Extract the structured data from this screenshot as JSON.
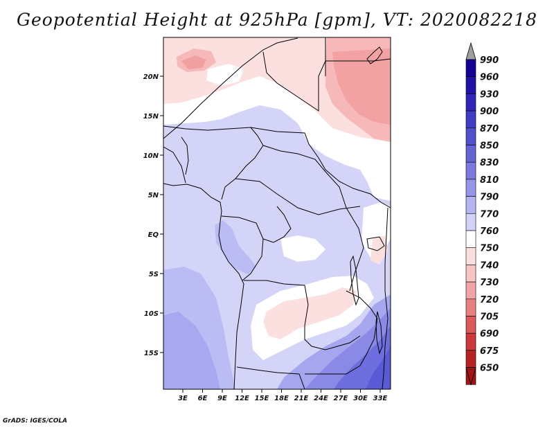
{
  "title": "Geopotential Height at 925hPa [gpm], VT: 2020082218",
  "credit": "GrADS: IGES/COLA",
  "map": {
    "lat_labels": [
      "20N",
      "15N",
      "10N",
      "5N",
      "EQ",
      "5S",
      "10S",
      "15S"
    ],
    "lon_labels": [
      "3E",
      "6E",
      "9E",
      "12E",
      "15E",
      "18E",
      "21E",
      "24E",
      "27E",
      "30E",
      "33E"
    ]
  },
  "colorbar": {
    "levels": [
      "990",
      "960",
      "930",
      "900",
      "870",
      "850",
      "830",
      "810",
      "790",
      "770",
      "760",
      "750",
      "740",
      "730",
      "720",
      "705",
      "690",
      "675",
      "650"
    ],
    "colors": [
      "#150096",
      "#2212a8",
      "#3024b8",
      "#3f3cc4",
      "#5050cc",
      "#6464d4",
      "#7a7ae0",
      "#9696ea",
      "#b4b4f2",
      "#d2d2f8",
      "#ffffff",
      "#fcdede",
      "#f8c4c4",
      "#f2a4a4",
      "#e88080",
      "#dc5a5a",
      "#cc3a3a",
      "#b82424",
      "#a01414"
    ],
    "top_arrow_color": "#a0a0a0",
    "bottom_arrow_color": "#a01414"
  }
}
